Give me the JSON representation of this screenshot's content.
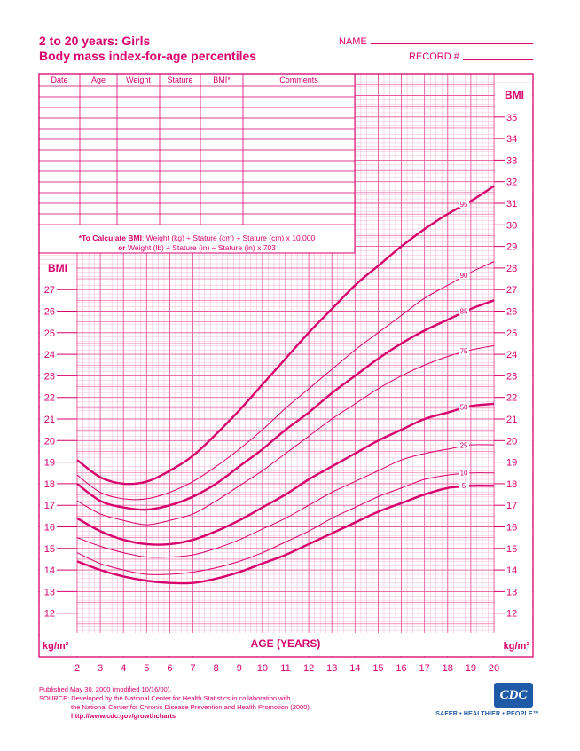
{
  "header": {
    "title_line1": "2 to 20 years: Girls",
    "title_line2": "Body mass index-for-age percentiles",
    "name_label": "NAME",
    "record_label": "RECORD #"
  },
  "record_table": {
    "columns": [
      "Date",
      "Age",
      "Weight",
      "Stature",
      "BMI*",
      "Comments"
    ]
  },
  "formula": {
    "line1_bold": "*To Calculate BMI",
    "line1_rest": ": Weight (kg) ÷ Stature (cm) ÷ Stature (cm) x 10,000",
    "line2_bold": "or",
    "line2_rest": " Weight (lb) ÷ Stature (in) ÷ Stature (in) x 703"
  },
  "footer": {
    "published": "Published May 30, 2000 (modified 10/16/00).",
    "source_line1": "SOURCE: Developed by the National Center for Health Statistics in collaboration with",
    "source_line2": "the National Center for Chronic Disease Prevention and Health Promotion (2000).",
    "url": "http://www.cdc.gov/growthcharts"
  },
  "logo": {
    "text": "CDC",
    "tagline": "SAFER • HEALTHIER • PEOPLE™"
  },
  "chart_data": {
    "type": "line",
    "xlabel": "AGE (YEARS)",
    "ylabel_left": "BMI",
    "ylabel_right": "BMI",
    "unit_left": "kg/m²",
    "unit_right": "kg/m²",
    "xlim": [
      2,
      20
    ],
    "ylim": [
      11,
      37
    ],
    "x_ticks": [
      2,
      3,
      4,
      5,
      6,
      7,
      8,
      9,
      10,
      11,
      12,
      13,
      14,
      15,
      16,
      17,
      18,
      19,
      20
    ],
    "y_ticks_left": [
      12,
      13,
      14,
      15,
      16,
      17,
      18,
      19,
      20,
      21,
      22,
      23,
      24,
      25,
      26,
      27
    ],
    "y_ticks_right": [
      12,
      13,
      14,
      15,
      16,
      17,
      18,
      19,
      20,
      21,
      22,
      23,
      24,
      25,
      26,
      27,
      28,
      29,
      30,
      31,
      32,
      33,
      34,
      35
    ],
    "grid": true,
    "colors": {
      "line": "#d8006d",
      "grid_major": "#e85a9a",
      "grid_minor": "#f6b9d4"
    },
    "ages": [
      2,
      3,
      4,
      5,
      6,
      7,
      8,
      9,
      10,
      11,
      12,
      13,
      14,
      15,
      16,
      17,
      18,
      19,
      20
    ],
    "series": [
      {
        "name": "5",
        "bold": true,
        "values": [
          14.4,
          14.0,
          13.7,
          13.5,
          13.4,
          13.4,
          13.6,
          13.9,
          14.3,
          14.7,
          15.2,
          15.7,
          16.2,
          16.7,
          17.1,
          17.5,
          17.8,
          17.9,
          17.9
        ]
      },
      {
        "name": "10",
        "bold": false,
        "values": [
          14.8,
          14.3,
          14.0,
          13.8,
          13.8,
          13.9,
          14.1,
          14.4,
          14.8,
          15.3,
          15.8,
          16.4,
          16.9,
          17.4,
          17.8,
          18.2,
          18.4,
          18.5,
          18.5
        ]
      },
      {
        "name": "25",
        "bold": false,
        "values": [
          15.5,
          15.1,
          14.8,
          14.6,
          14.6,
          14.7,
          15.0,
          15.4,
          15.9,
          16.4,
          17.0,
          17.6,
          18.1,
          18.6,
          19.1,
          19.4,
          19.6,
          19.8,
          19.8
        ]
      },
      {
        "name": "50",
        "bold": true,
        "values": [
          16.4,
          15.8,
          15.4,
          15.2,
          15.2,
          15.4,
          15.8,
          16.3,
          16.9,
          17.5,
          18.2,
          18.8,
          19.4,
          20.0,
          20.5,
          21.0,
          21.3,
          21.6,
          21.7
        ]
      },
      {
        "name": "75",
        "bold": false,
        "values": [
          17.2,
          16.6,
          16.3,
          16.1,
          16.3,
          16.6,
          17.2,
          17.9,
          18.6,
          19.4,
          20.2,
          21.0,
          21.7,
          22.4,
          23.0,
          23.5,
          23.9,
          24.2,
          24.4
        ]
      },
      {
        "name": "85",
        "bold": true,
        "values": [
          18.0,
          17.2,
          16.9,
          16.8,
          17.0,
          17.4,
          18.0,
          18.8,
          19.6,
          20.5,
          21.3,
          22.2,
          23.0,
          23.8,
          24.5,
          25.1,
          25.6,
          26.1,
          26.5
        ]
      },
      {
        "name": "90",
        "bold": false,
        "values": [
          18.4,
          17.6,
          17.3,
          17.3,
          17.6,
          18.1,
          18.8,
          19.6,
          20.5,
          21.5,
          22.4,
          23.3,
          24.2,
          25.0,
          25.8,
          26.6,
          27.2,
          27.8,
          28.3
        ]
      },
      {
        "name": "95",
        "bold": true,
        "values": [
          19.1,
          18.3,
          18.0,
          18.1,
          18.6,
          19.3,
          20.3,
          21.4,
          22.6,
          23.8,
          25.0,
          26.1,
          27.2,
          28.1,
          29.0,
          29.8,
          30.5,
          31.1,
          31.8
        ]
      }
    ]
  }
}
